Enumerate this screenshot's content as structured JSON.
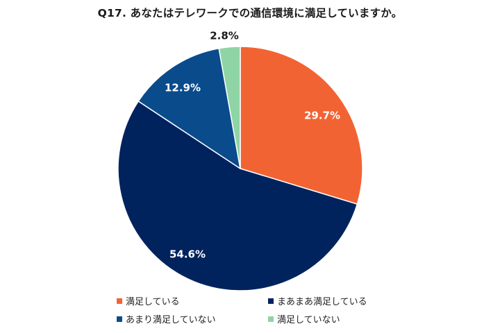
{
  "chart_data": {
    "type": "pie",
    "title": "Q17. あなたはテレワークでの通信環境に満足していますか。",
    "start_angle_deg": 0,
    "direction": "clockwise",
    "slices": [
      {
        "label": "満足している",
        "value": 29.7,
        "display": "29.7%",
        "color": "#f26333"
      },
      {
        "label": "まあまあ満足している",
        "value": 54.6,
        "display": "54.6%",
        "color": "#00235e"
      },
      {
        "label": "あまり満足していない",
        "value": 12.9,
        "display": "12.9%",
        "color": "#0a4b8c"
      },
      {
        "label": "満足していない",
        "value": 2.8,
        "display": "2.8%",
        "color": "#8fd4a5"
      }
    ],
    "legend_position": "bottom"
  },
  "legend": {
    "items": [
      {
        "label": "満足している",
        "color": "#f26333"
      },
      {
        "label": "まあまあ満足している",
        "color": "#00235e"
      },
      {
        "label": "あまり満足していない",
        "color": "#0a4b8c"
      },
      {
        "label": "満足していない",
        "color": "#8fd4a5"
      }
    ]
  }
}
